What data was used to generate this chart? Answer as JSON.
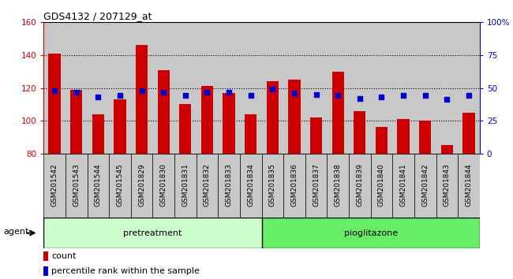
{
  "title": "GDS4132 / 207129_at",
  "categories": [
    "GSM201542",
    "GSM201543",
    "GSM201544",
    "GSM201545",
    "GSM201829",
    "GSM201830",
    "GSM201831",
    "GSM201832",
    "GSM201833",
    "GSM201834",
    "GSM201835",
    "GSM201836",
    "GSM201837",
    "GSM201838",
    "GSM201839",
    "GSM201840",
    "GSM201841",
    "GSM201842",
    "GSM201843",
    "GSM201844"
  ],
  "bar_values": [
    141,
    119,
    104,
    113,
    146,
    131,
    110,
    121,
    117,
    104,
    124,
    125,
    102,
    130,
    106,
    96,
    101,
    100,
    85,
    105
  ],
  "dot_values": [
    48,
    47,
    43,
    44,
    48,
    47,
    44,
    47,
    47,
    44,
    49,
    46,
    45,
    44,
    42,
    43,
    44,
    44,
    41,
    44
  ],
  "bar_color": "#cc0000",
  "dot_color": "#0000cc",
  "ylim_left": [
    80,
    160
  ],
  "ylim_right": [
    0,
    100
  ],
  "yticks_left": [
    80,
    100,
    120,
    140,
    160
  ],
  "yticks_right": [
    0,
    25,
    50,
    75,
    100
  ],
  "ytick_labels_right": [
    "0",
    "25",
    "50",
    "75",
    "100%"
  ],
  "pretreatment_color": "#ccffcc",
  "pioglitazone_color": "#66ee66",
  "agent_label": "agent",
  "pretreatment_label": "pretreatment",
  "pioglitazone_label": "pioglitazone",
  "legend_count": "count",
  "legend_percentile": "percentile rank within the sample",
  "bar_bottom": 80,
  "col_bg_color": "#c8c8c8",
  "plot_bg": "#ffffff",
  "fig_bg": "#ffffff"
}
